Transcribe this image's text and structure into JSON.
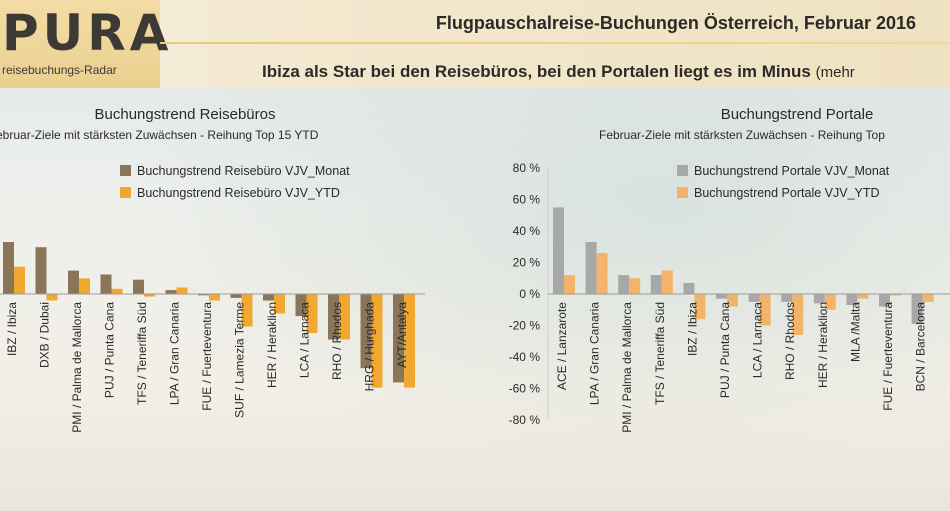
{
  "header": {
    "logo": "PURA",
    "logo_sub": "reisebuchungs-Radar",
    "title": "Flugpauschalreise-Buchungen Österreich, Februar 2016",
    "subtitle": "Ibiza als Star bei den Reisebüros, bei den Portalen liegt es im Minus",
    "subtitle_more": "(mehr"
  },
  "colors": {
    "dark_series": "#8a7558",
    "light_series": "#f0a830",
    "gray_series": "#a8a8a8",
    "peach_series": "#f4b36a"
  },
  "chart_data": [
    {
      "type": "bar",
      "title": "Buchungstrend Reisebüros",
      "subtitle": "ebruar-Ziele mit stärksten Zuwächsen - Reihung Top 15 YTD",
      "categories": [
        "IBZ / Ibiza",
        "DXB / Dubai",
        "PMI / Palma de Mallorca",
        "PUJ / Punta Cana",
        "TFS / Teneriffa Süd",
        "LPA / Gran Canaria",
        "FUE / Fuerteventura",
        "SUF / Lamezia Terme",
        "HER / Heraklion",
        "LCA / Larnaca",
        "RHO / Rhodos",
        "HRG / Hurghada",
        "AYT/Antalya"
      ],
      "series": [
        {
          "name": "Buchungstrend Reisebüro VJV_Monat",
          "values": [
            40,
            36,
            18,
            15,
            11,
            3,
            -1,
            -3,
            -5,
            -17,
            -35,
            -57,
            -68
          ]
        },
        {
          "name": "Buchungstrend Reisebüro VJV_YTD",
          "values": [
            21,
            -5,
            12,
            4,
            -2,
            5,
            -5,
            -25,
            -15,
            -30,
            -35,
            -72,
            -72
          ]
        }
      ],
      "ylim": [
        -80,
        80
      ],
      "grid": false,
      "legend_position": "top-right"
    },
    {
      "type": "bar",
      "title": "Buchungstrend Portale",
      "subtitle": "Februar-Ziele mit stärksten Zuwächsen - Reihung Top",
      "categories": [
        "ACE / Lanzarote",
        "LPA / Gran Canaria",
        "PMI / Palma de Mallorca",
        "TFS / Teneriffa Süd",
        "IBZ / Ibiza",
        "PUJ / Punta Cana",
        "LCA / Larnaca",
        "RHO / Rhodos",
        "HER / Heraklion",
        "MLA /Malta",
        "FUE / Fuerteventura",
        "BCN / Barcelona"
      ],
      "series": [
        {
          "name": "Buchungstrend Portale VJV_Monat",
          "values": [
            55,
            33,
            12,
            12,
            7,
            -3,
            -5,
            -5,
            -6,
            -7,
            -8,
            -19
          ]
        },
        {
          "name": "Buchungstrend Portale VJV_YTD",
          "values": [
            12,
            26,
            10,
            15,
            -16,
            -8,
            -20,
            -26,
            -10,
            -3,
            -1,
            -5
          ]
        }
      ],
      "ylim": [
        -80,
        80
      ],
      "yticks": [
        "80 %",
        "60 %",
        "40 %",
        "20 %",
        "0 %",
        "-20 %",
        "-40 %",
        "-60 %",
        "-80 %"
      ],
      "grid": false,
      "legend_position": "top-right"
    }
  ]
}
